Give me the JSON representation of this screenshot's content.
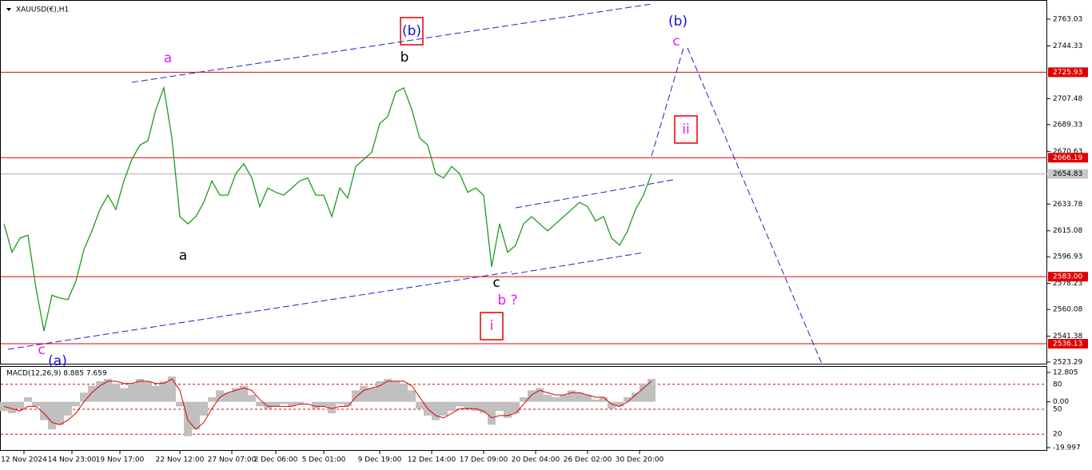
{
  "chart_data": [
    {
      "type": "line",
      "title": "XAUUSD(€),H1",
      "color": "#1f9a1f",
      "values": [
        2620,
        2600,
        2610,
        2612,
        2575,
        2545,
        2570,
        2568,
        2567,
        2580,
        2602,
        2615,
        2630,
        2640,
        2630,
        2650,
        2665,
        2675,
        2678,
        2700,
        2715,
        2680,
        2625,
        2620,
        2625,
        2635,
        2650,
        2640,
        2640,
        2655,
        2662,
        2652,
        2632,
        2645,
        2642,
        2640,
        2645,
        2650,
        2652,
        2640,
        2640,
        2625,
        2645,
        2638,
        2660,
        2665,
        2670,
        2690,
        2695,
        2712,
        2715,
        2700,
        2680,
        2675,
        2655,
        2652,
        2660,
        2655,
        2642,
        2645,
        2640,
        2590,
        2620,
        2600,
        2605,
        2620,
        2625,
        2620,
        2615,
        2620,
        2625,
        2630,
        2635,
        2632,
        2622,
        2625,
        2610,
        2605,
        2615,
        2630,
        2640,
        2655
      ],
      "xlim": [
        0,
        130.5
      ],
      "xticks": [
        {
          "value": 2.5,
          "label": "12 Nov 2024"
        },
        {
          "value": 8.5,
          "label": "14 Nov 23:00"
        },
        {
          "value": 14.5,
          "label": "19 Nov 17:00"
        },
        {
          "value": 22,
          "label": "22 Nov 12:00"
        },
        {
          "value": 28.5,
          "label": "27 Nov 07:00"
        },
        {
          "value": 34,
          "label": "2 Dec 06:00"
        },
        {
          "value": 40,
          "label": "5 Dec 01:00"
        },
        {
          "value": 47,
          "label": "9 Dec 19:00"
        },
        {
          "value": 53.5,
          "label": "12 Dec 14:00"
        },
        {
          "value": 60,
          "label": "17 Dec 09:00"
        },
        {
          "value": 66.5,
          "label": "20 Dec 04:00"
        },
        {
          "value": 73,
          "label": "26 Dec 02:00"
        },
        {
          "value": 79.5,
          "label": "30 Dec 20:00"
        }
      ],
      "ylim": [
        2523.29,
        2763.03
      ],
      "yticks": [
        2763.03,
        2744.33,
        2707.48,
        2689.33,
        2670.63,
        2633.78,
        2615.08,
        2596.93,
        2578.23,
        2560.08,
        2541.38,
        2523.29
      ],
      "levels": [
        2725.93,
        2666.19,
        {
          "value": 2583,
          "label": "2583.00"
        },
        2536.13
      ],
      "level_color": "#e00000",
      "last_price": 2654.83,
      "annotations": [
        {
          "text": "a",
          "color": "#e020e0"
        },
        {
          "text": "a",
          "color": "#000000"
        },
        {
          "text": "(b)",
          "color": "#1010e0"
        },
        {
          "text": "b",
          "color": "#000000"
        },
        {
          "text": "(b)",
          "color": "#1010e0"
        },
        {
          "text": "c",
          "color": "#e020e0"
        },
        {
          "text": "ii",
          "color": "#e020e0"
        },
        {
          "text": "c",
          "color": "#000000"
        },
        {
          "text": "b ?",
          "color": "#e020e0"
        },
        {
          "text": "i",
          "color": "#e020e0"
        },
        {
          "text": "c",
          "color": "#e020e0"
        },
        {
          "text": "(a)",
          "color": "#1010e0"
        }
      ]
    },
    {
      "type": "bar",
      "title": "MACD(12,26,9) 8.885 7.659",
      "color": "#c0c0c0",
      "values": [
        -4,
        -5,
        -3,
        2,
        -2,
        -8,
        -12,
        -10,
        -6,
        -2,
        4,
        7,
        9,
        10,
        8,
        6,
        8,
        10,
        9,
        7,
        9,
        11,
        -2,
        -15,
        -12,
        -6,
        2,
        5,
        4,
        6,
        7,
        3,
        -2,
        -3,
        -2,
        -1,
        -2,
        -1,
        0,
        -3,
        -2,
        -5,
        -1,
        -2,
        5,
        7,
        6,
        9,
        10,
        9,
        8,
        5,
        -3,
        -6,
        -8,
        -6,
        -4,
        -2,
        -3,
        -4,
        -5,
        -10,
        -4,
        -7,
        -5,
        2,
        5,
        6,
        3,
        2,
        3,
        5,
        4,
        3,
        1,
        2,
        -3,
        -2,
        2,
        4,
        8,
        10
      ],
      "signal_values": [
        -2,
        -3,
        -4,
        -2,
        -2,
        -5,
        -9,
        -10,
        -8,
        -5,
        0,
        4,
        7,
        9,
        9,
        8,
        8,
        9,
        9,
        8,
        8,
        10,
        5,
        -8,
        -12,
        -9,
        -3,
        2,
        4,
        5,
        6,
        5,
        1,
        -2,
        -2,
        -2,
        -2,
        -1,
        -1,
        -2,
        -2,
        -3,
        -2,
        -2,
        2,
        5,
        6,
        7,
        9,
        9,
        9,
        7,
        2,
        -3,
        -6,
        -7,
        -5,
        -3,
        -3,
        -3,
        -4,
        -7,
        -6,
        -6,
        -5,
        -1,
        3,
        5,
        4,
        3,
        3,
        4,
        4,
        3,
        2,
        2,
        -1,
        -2,
        0,
        3,
        6,
        9
      ],
      "signal_color": "#e00000",
      "ylim": [
        -19.997,
        12.805
      ],
      "yticks": [
        12.805,
        {
          "value": 0,
          "label": "0.00"
        },
        -19.997
      ],
      "levels": [
        80,
        50,
        20
      ],
      "levels_lim": [
        0,
        100
      ]
    }
  ]
}
